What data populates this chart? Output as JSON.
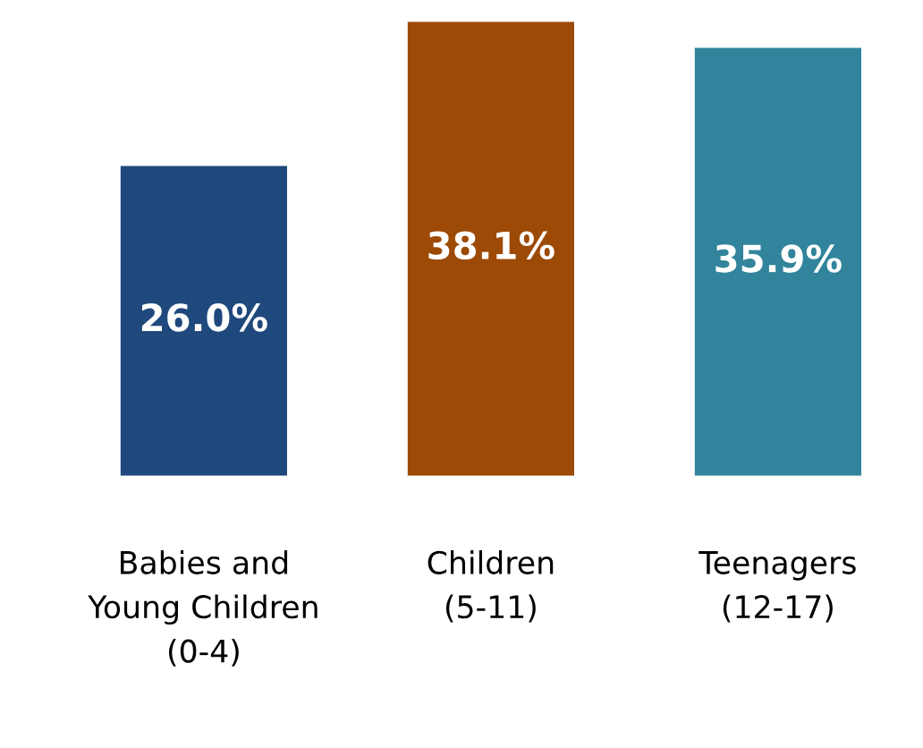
{
  "chart_data": {
    "type": "bar",
    "categories": [
      "Babies and\nYoung Children\n(0-4)",
      "Children\n(5-11)",
      "Teenagers\n(12-17)"
    ],
    "values": [
      26.0,
      38.1,
      35.9
    ],
    "colors": [
      "#1f497d",
      "#9c4a06",
      "#31849b"
    ],
    "value_labels": [
      "26.0%",
      "38.1%",
      "35.9%"
    ],
    "grid": false,
    "legend": false
  }
}
